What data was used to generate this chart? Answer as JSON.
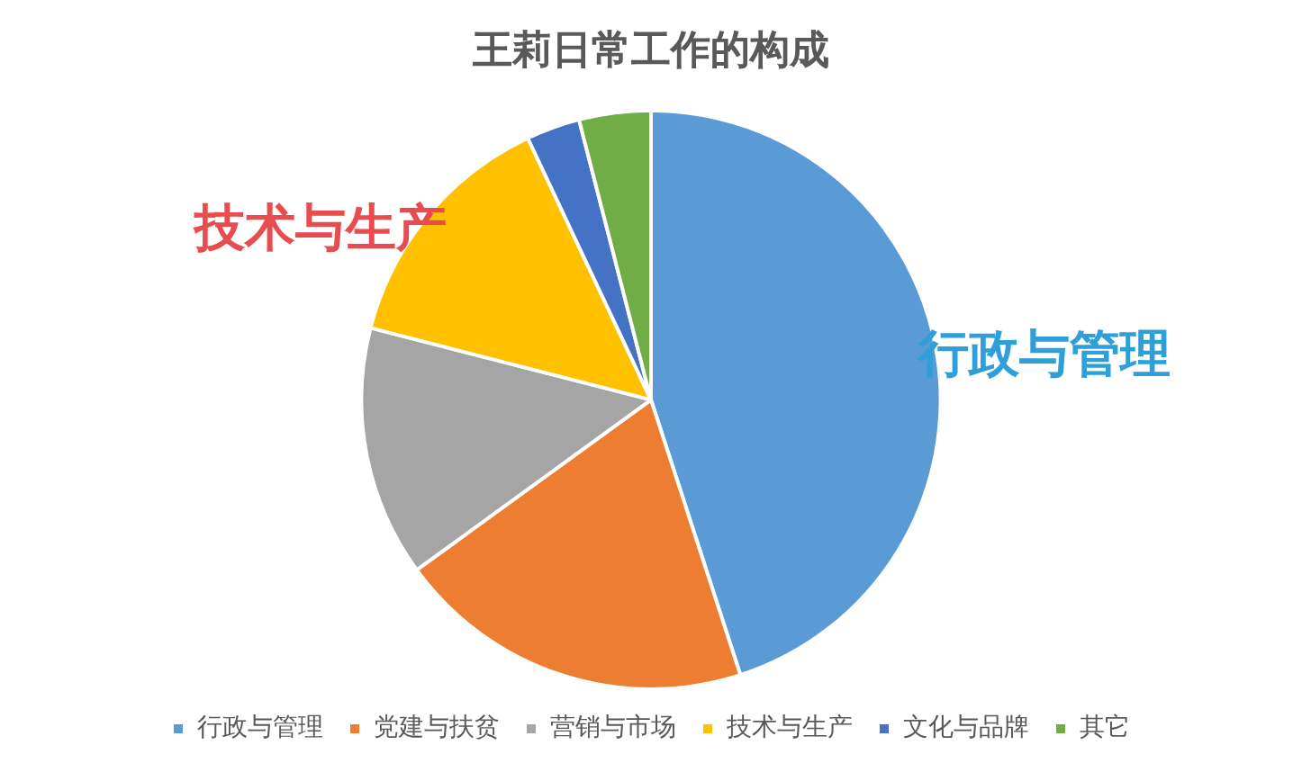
{
  "chart_data": {
    "type": "pie",
    "title": "王莉日常工作的构成",
    "categories": [
      "行政与管理",
      "党建与扶贫",
      "营销与市场",
      "技术与生产",
      "文化与品牌",
      "其它"
    ],
    "values": [
      45,
      20,
      14,
      14,
      3,
      4
    ],
    "colors": [
      "#5b9bd5",
      "#ed7d31",
      "#a5a5a5",
      "#ffc000",
      "#4472c4",
      "#70ad47"
    ],
    "legend": "bottom",
    "annotations": [
      "技术与生产",
      "行政与管理"
    ]
  }
}
